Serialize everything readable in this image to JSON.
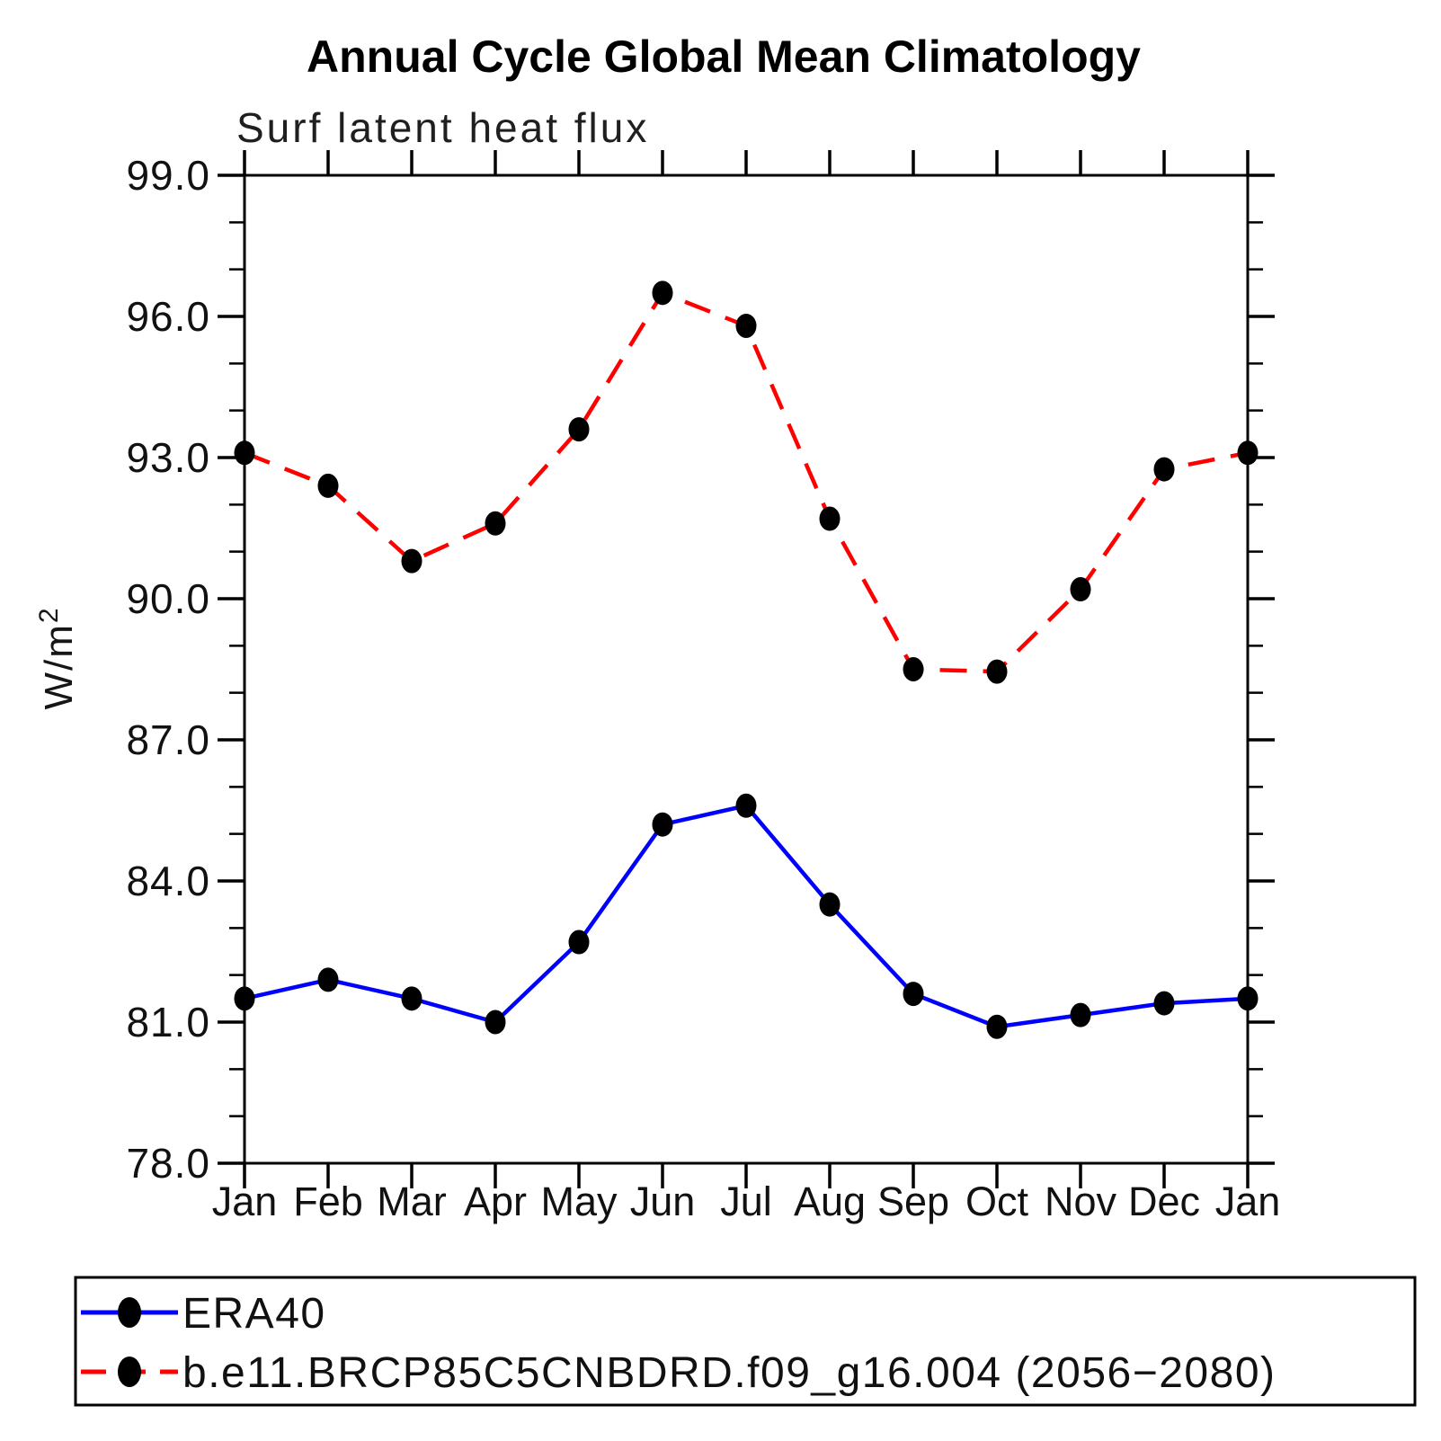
{
  "chart_data": {
    "type": "line",
    "title": "Annual Cycle Global Mean Climatology",
    "subtitle": "Surf latent heat flux",
    "ylabel": "W/m²",
    "ylabel_base": "W/m",
    "ylabel_sup": "2",
    "xlabel": "",
    "categories": [
      "Jan",
      "Feb",
      "Mar",
      "Apr",
      "May",
      "Jun",
      "Jul",
      "Aug",
      "Sep",
      "Oct",
      "Nov",
      "Dec",
      "Jan"
    ],
    "ylim": [
      78.0,
      99.0
    ],
    "y_major_ticks": [
      78,
      81,
      84,
      87,
      90,
      93,
      96,
      99
    ],
    "y_tick_labels": [
      "78.0",
      "81.0",
      "84.0",
      "87.0",
      "90.0",
      "93.0",
      "96.0",
      "99.0"
    ],
    "y_minor_step": 1,
    "grid": false,
    "legend_position": "bottom-left-box",
    "axis_color": "#000000",
    "marker_shape": "filled-circle",
    "series": [
      {
        "name": "ERA40",
        "color": "#0000ff",
        "style": "solid",
        "marker_color": "#000000",
        "values": [
          81.5,
          81.9,
          81.5,
          81.0,
          82.7,
          85.2,
          85.6,
          83.5,
          81.6,
          80.9,
          81.15,
          81.4,
          81.5
        ]
      },
      {
        "name": "b.e11.BRCP85C5CNBDRD.f09_g16.004 (2056−2080)",
        "color": "#ff0000",
        "style": "dashed",
        "marker_color": "#000000",
        "values": [
          93.1,
          92.4,
          90.8,
          91.6,
          93.6,
          96.5,
          95.8,
          91.7,
          88.5,
          88.45,
          90.2,
          92.75,
          93.1
        ]
      }
    ]
  }
}
